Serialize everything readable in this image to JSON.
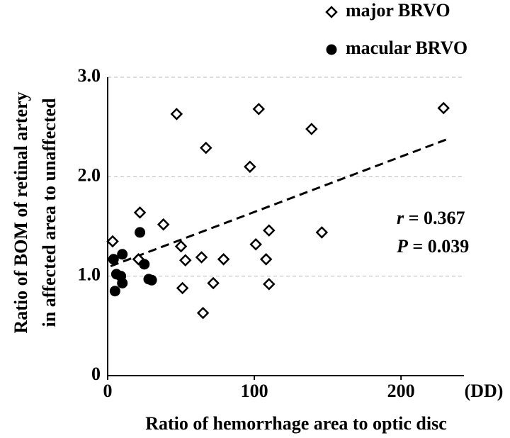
{
  "chart_data": {
    "type": "scatter",
    "x_label": "Ratio of hemorrhage area to optic disc",
    "y_label": [
      "Ratio of BOM of retinal artery",
      "in affected area to unaffected"
    ],
    "x_unit": "(DD)",
    "xlim": [
      0,
      240
    ],
    "xticks": [
      0,
      100,
      200
    ],
    "ylim": [
      0,
      3
    ],
    "yticks": [
      0,
      {
        "value": 1,
        "label": "1.0"
      },
      {
        "value": 2,
        "label": "2.0"
      },
      {
        "value": 3,
        "label": "3.0"
      }
    ],
    "grid": true,
    "legend": "top-right",
    "series": [
      {
        "name": "major BRVO",
        "marker": "diamond",
        "color": "#000000",
        "x": [
          3.4,
          47,
          22,
          38,
          67,
          50,
          53,
          21,
          64,
          79,
          51,
          72,
          65,
          103,
          97,
          101,
          110,
          108,
          110,
          139,
          146,
          229
        ],
        "values": [
          1.35,
          2.63,
          1.64,
          1.52,
          2.29,
          1.3,
          1.16,
          1.17,
          1.19,
          1.17,
          0.88,
          0.93,
          0.63,
          2.68,
          2.1,
          1.32,
          1.46,
          1.17,
          0.92,
          2.48,
          1.44,
          2.69
        ]
      },
      {
        "name": "macular BRVO",
        "marker": "circle",
        "color": "#000000",
        "x": [
          4,
          10,
          6,
          9,
          10,
          5,
          22,
          25,
          28,
          30
        ],
        "values": [
          1.17,
          1.22,
          1.02,
          1.0,
          0.93,
          0.85,
          1.44,
          1.12,
          0.97,
          0.96
        ]
      }
    ],
    "trendline": {
      "x": [
        2,
        232
      ],
      "y": [
        1.1,
        2.38
      ]
    },
    "annotations": [
      {
        "symbol": "r",
        "text": "= 0.367"
      },
      {
        "symbol": "P",
        "text": "= 0.039"
      }
    ]
  }
}
